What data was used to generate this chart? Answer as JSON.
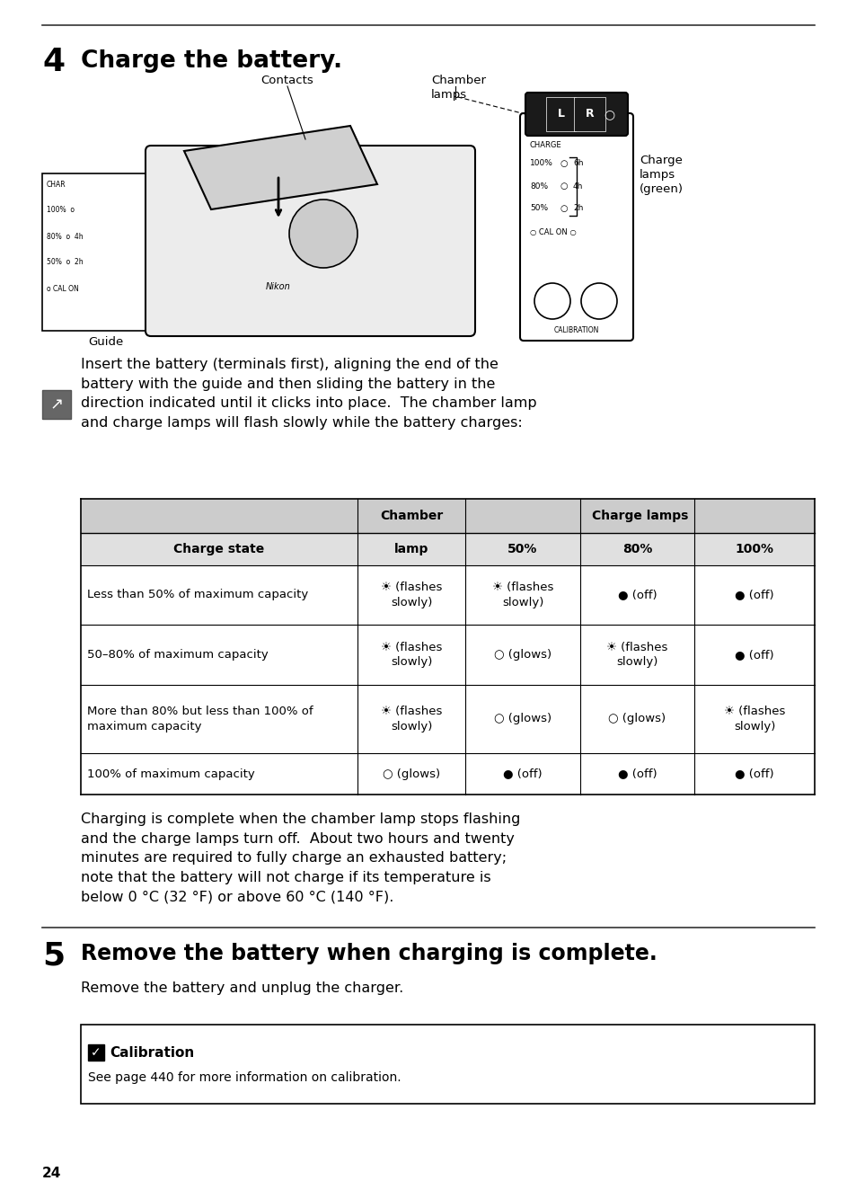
{
  "page_bg": "#ffffff",
  "text_color": "#000000",
  "section4_number": "4",
  "section4_title": "Charge the battery.",
  "section5_number": "5",
  "section5_title": "Remove the battery when charging is complete.",
  "section5_body": "Remove the battery and unplug the charger.",
  "insert_text": "Insert the battery (terminals first), aligning the end of the\nbattery with the guide and then sliding the battery in the\ndirection indicated until it clicks into place.  The chamber lamp\nand charge lamps will flash slowly while the battery charges:",
  "charging_text_lines": [
    "Charging is complete when the chamber lamp stops flashing",
    "and the charge lamps turn off.  About two hours and twenty",
    "minutes are required to fully charge an exhausted battery;",
    "note that the battery will not charge if its temperature is",
    "below 0 °C (32 °F) or above 60 °C (140 °F)."
  ],
  "calib_title": "Calibration",
  "calib_body": "See page 440 for more information on calibration.",
  "page_number": "24",
  "sun": "☀",
  "filled": "●",
  "empty": "○",
  "diagram_contacts": "Contacts",
  "diagram_chamber": "Chamber\nlamps",
  "diagram_guide": "Guide",
  "diagram_charge_green": "Charge\nlamps\n(green)"
}
